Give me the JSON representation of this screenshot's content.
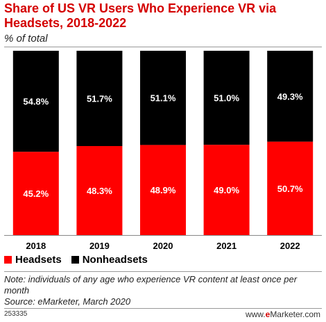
{
  "header": {
    "title": "Share of US VR Users Who Experience VR via Headsets, 2018-2022",
    "subtitle": "% of total"
  },
  "legend": {
    "items": [
      {
        "label": "Headsets",
        "color": "#ff0000"
      },
      {
        "label": "Nonheadsets",
        "color": "#000000"
      }
    ]
  },
  "footer": {
    "note": "Note: individuals of any age who experience VR content at least once per month",
    "source": "Source: eMarketer, March 2020",
    "chart_id": "253335",
    "brand_prefix": "www.",
    "brand_e": "e",
    "brand_rest": "Marketer.com"
  },
  "chart_data": {
    "type": "bar",
    "stacked": true,
    "categories": [
      "2018",
      "2019",
      "2020",
      "2021",
      "2022"
    ],
    "series": [
      {
        "name": "Headsets",
        "color": "#ff0000",
        "values": [
          45.2,
          48.3,
          48.9,
          49.0,
          50.7
        ],
        "labels": [
          "45.2%",
          "48.3%",
          "48.9%",
          "49.0%",
          "50.7%"
        ]
      },
      {
        "name": "Nonheadsets",
        "color": "#000000",
        "values": [
          54.8,
          51.7,
          51.1,
          51.0,
          49.3
        ],
        "labels": [
          "54.8%",
          "51.7%",
          "51.1%",
          "51.0%",
          "49.3%"
        ]
      }
    ],
    "ylim": [
      0,
      100
    ],
    "grid": false,
    "legend_position": "bottom-left"
  }
}
